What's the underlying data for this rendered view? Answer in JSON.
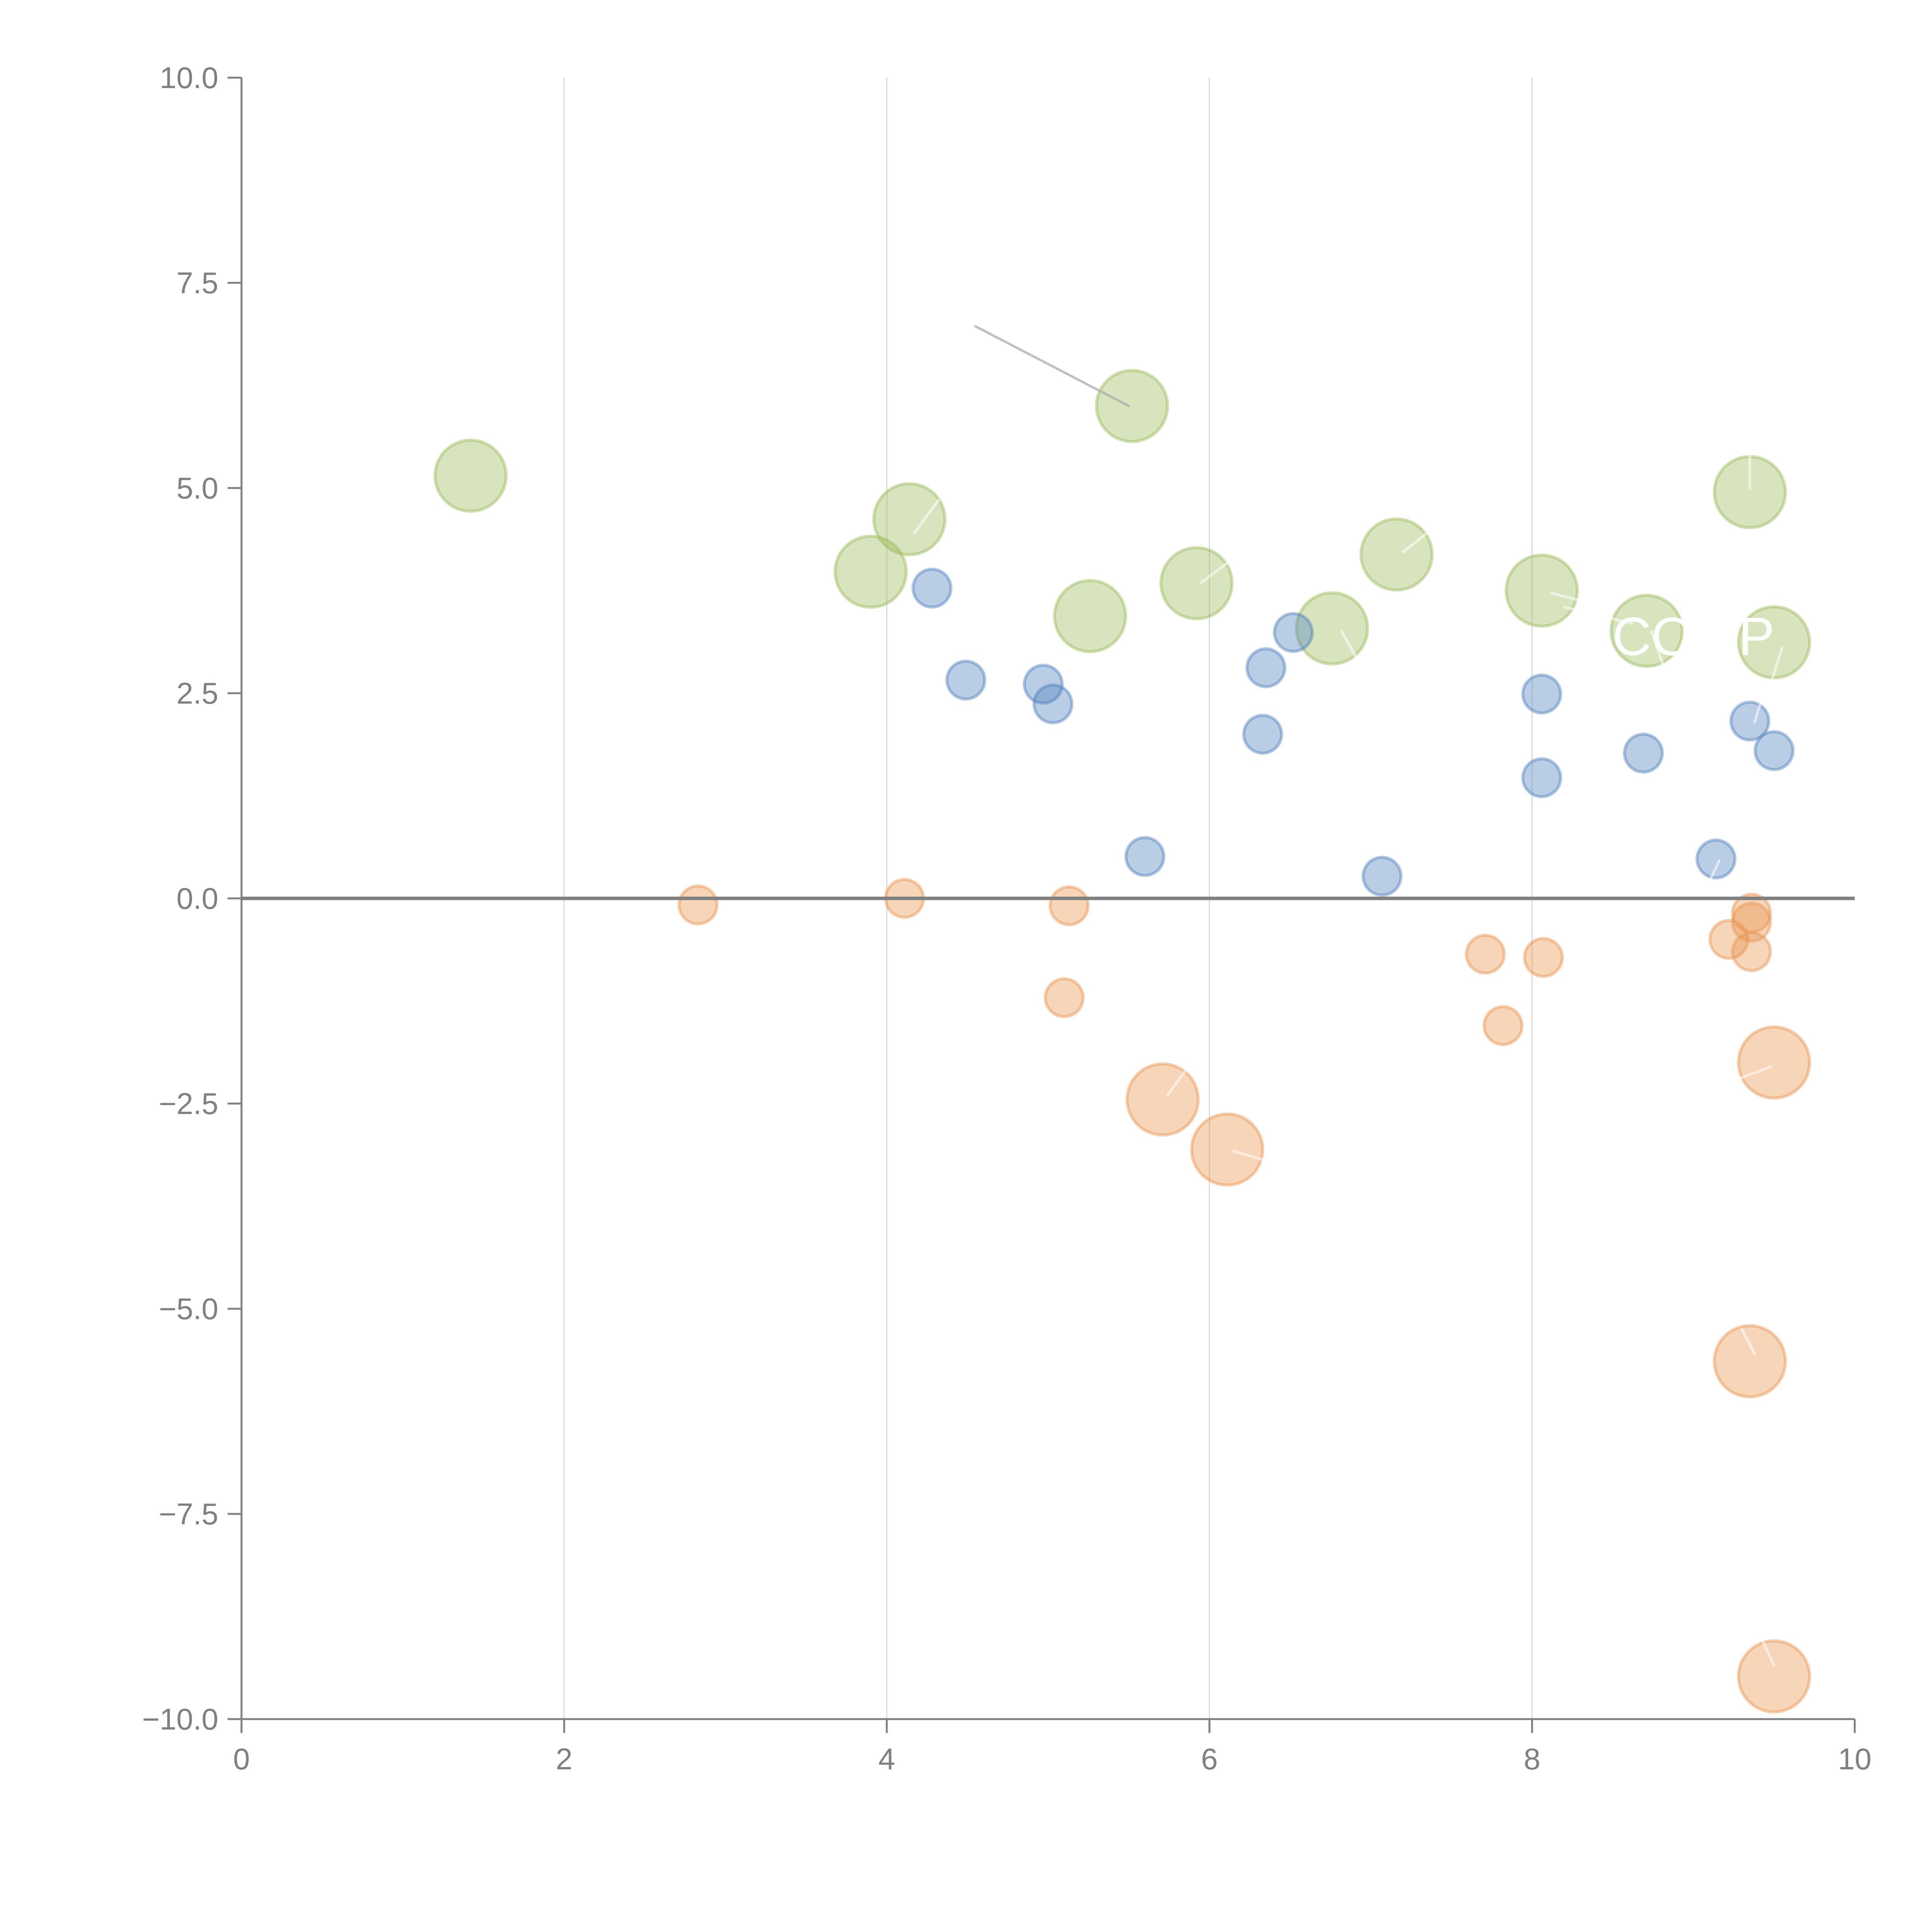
{
  "chart_data": {
    "type": "scatter",
    "title": "",
    "xlabel": "",
    "ylabel": "",
    "xlim": [
      0,
      10
    ],
    "ylim": [
      -10,
      10
    ],
    "x_ticks": [
      "0",
      "2",
      "4",
      "6",
      "8",
      "10"
    ],
    "x_tick_values": [
      0,
      2,
      4,
      6,
      8,
      10
    ],
    "y_ticks": [
      "10.0",
      "7.5",
      "5.0",
      "2.5",
      "0.0",
      "−2.5",
      "−5.0",
      "−7.5",
      "−10.0"
    ],
    "y_tick_values": [
      10,
      7.5,
      5,
      2.5,
      0,
      -2.5,
      -5,
      -7.5,
      -10
    ],
    "grid": "vertical",
    "zero_line": true,
    "legend": "none",
    "series": [
      {
        "name": "green",
        "color": "#9bbb59",
        "size": "large",
        "points": [
          {
            "x": 1.42,
            "y": 5.15
          },
          {
            "x": 3.9,
            "y": 3.98
          },
          {
            "x": 4.14,
            "y": 4.62
          },
          {
            "x": 5.26,
            "y": 3.44
          },
          {
            "x": 5.52,
            "y": 6.0
          },
          {
            "x": 5.92,
            "y": 3.84
          },
          {
            "x": 6.76,
            "y": 3.29
          },
          {
            "x": 7.16,
            "y": 4.19
          },
          {
            "x": 8.06,
            "y": 3.75
          },
          {
            "x": 8.71,
            "y": 3.26
          },
          {
            "x": 9.35,
            "y": 4.95
          },
          {
            "x": 9.5,
            "y": 3.12
          }
        ]
      },
      {
        "name": "blue",
        "color": "#4f81bd",
        "size": "small",
        "points": [
          {
            "x": 4.28,
            "y": 3.78
          },
          {
            "x": 4.49,
            "y": 2.66
          },
          {
            "x": 4.97,
            "y": 2.61
          },
          {
            "x": 5.03,
            "y": 2.37
          },
          {
            "x": 5.6,
            "y": 0.51
          },
          {
            "x": 6.33,
            "y": 2.0
          },
          {
            "x": 6.35,
            "y": 2.81
          },
          {
            "x": 6.52,
            "y": 3.24
          },
          {
            "x": 7.07,
            "y": 0.27
          },
          {
            "x": 8.06,
            "y": 2.49
          },
          {
            "x": 8.06,
            "y": 1.47
          },
          {
            "x": 8.69,
            "y": 1.77
          },
          {
            "x": 9.14,
            "y": 0.48
          },
          {
            "x": 9.35,
            "y": 2.16
          },
          {
            "x": 9.5,
            "y": 1.8
          }
        ]
      },
      {
        "name": "orange",
        "color": "#e8954f",
        "points": [
          {
            "x": 2.83,
            "y": -0.08,
            "size": "small"
          },
          {
            "x": 4.11,
            "y": 0.0,
            "size": "small"
          },
          {
            "x": 5.13,
            "y": -0.09,
            "size": "small"
          },
          {
            "x": 5.1,
            "y": -1.21,
            "size": "small"
          },
          {
            "x": 5.71,
            "y": -2.45,
            "size": "large"
          },
          {
            "x": 6.11,
            "y": -3.06,
            "size": "large"
          },
          {
            "x": 7.71,
            "y": -0.68,
            "size": "small"
          },
          {
            "x": 7.82,
            "y": -1.55,
            "size": "small"
          },
          {
            "x": 8.07,
            "y": -0.72,
            "size": "small"
          },
          {
            "x": 9.36,
            "y": -0.18,
            "size": "small"
          },
          {
            "x": 9.36,
            "y": -0.29,
            "size": "small"
          },
          {
            "x": 9.22,
            "y": -0.5,
            "size": "small"
          },
          {
            "x": 9.36,
            "y": -0.65,
            "size": "small"
          },
          {
            "x": 9.5,
            "y": -2.0,
            "size": "large"
          },
          {
            "x": 9.35,
            "y": -5.64,
            "size": "large"
          },
          {
            "x": 9.5,
            "y": -9.48,
            "size": "large"
          }
        ]
      }
    ],
    "annotations": [
      {
        "text": "COMP",
        "x": 9.0,
        "y": 3.2,
        "color": "#ffffff"
      }
    ],
    "leader_lines": [
      {
        "from": [
          4.55,
          6.97
        ],
        "to": [
          5.5,
          6.0
        ],
        "color": "#aaaaaa"
      },
      {
        "from": [
          4.17,
          4.45
        ],
        "to": [
          4.32,
          4.85
        ],
        "color": "#ffffff"
      },
      {
        "from": [
          5.95,
          3.85
        ],
        "to": [
          6.12,
          4.1
        ],
        "color": "#ffffff"
      },
      {
        "from": [
          7.2,
          4.22
        ],
        "to": [
          7.38,
          4.5
        ],
        "color": "#ffffff"
      },
      {
        "from": [
          6.82,
          3.25
        ],
        "to": [
          6.92,
          2.9
        ],
        "color": "#ffffff"
      },
      {
        "from": [
          8.12,
          3.72
        ],
        "to": [
          8.45,
          3.55
        ],
        "color": "#ffffff"
      },
      {
        "from": [
          8.74,
          3.25
        ],
        "to": [
          8.82,
          2.8
        ],
        "color": "#ffffff"
      },
      {
        "from": [
          8.2,
          3.55
        ],
        "to": [
          8.62,
          3.35
        ],
        "color": "#ffffff"
      },
      {
        "from": [
          9.55,
          3.05
        ],
        "to": [
          9.46,
          2.5
        ],
        "color": "#ffffff"
      },
      {
        "from": [
          9.35,
          5.0
        ],
        "to": [
          9.35,
          5.45
        ],
        "color": "#ffffff"
      },
      {
        "from": [
          9.38,
          2.15
        ],
        "to": [
          9.45,
          2.6
        ],
        "color": "#ffffff"
      },
      {
        "from": [
          9.16,
          0.46
        ],
        "to": [
          9.05,
          0.0
        ],
        "color": "#ffffff"
      },
      {
        "from": [
          5.74,
          -2.4
        ],
        "to": [
          5.85,
          -2.1
        ],
        "color": "#ffffff"
      },
      {
        "from": [
          6.15,
          -3.08
        ],
        "to": [
          6.45,
          -3.25
        ],
        "color": "#ffffff"
      },
      {
        "from": [
          9.28,
          -2.2
        ],
        "to": [
          9.48,
          -2.05
        ],
        "color": "#ffffff"
      },
      {
        "from": [
          9.38,
          -5.55
        ],
        "to": [
          9.3,
          -5.25
        ],
        "color": "#ffffff"
      },
      {
        "from": [
          9.5,
          -9.35
        ],
        "to": [
          9.43,
          -9.05
        ],
        "color": "#ffffff"
      }
    ]
  }
}
